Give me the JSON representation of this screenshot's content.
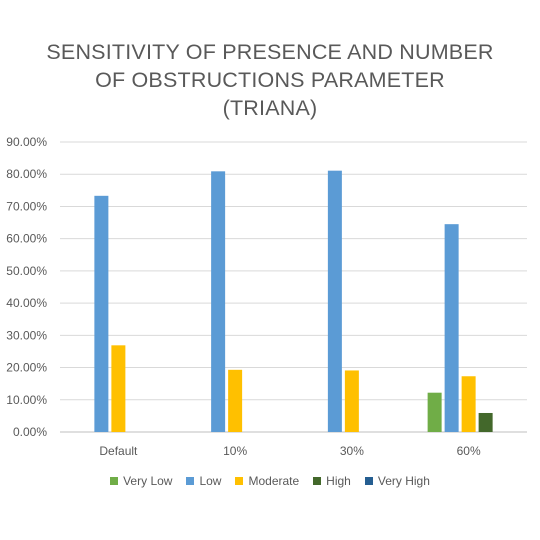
{
  "chart_data": {
    "type": "bar",
    "title": "SENSITIVITY OF PRESENCE AND NUMBER\nOF OBSTRUCTIONS PARAMETER\n(TRIANA)",
    "categories": [
      "Default",
      "10%",
      "30%",
      "60%"
    ],
    "series": [
      {
        "name": "Very Low",
        "color": "#70ad47",
        "values": [
          0,
          0,
          0,
          12.2
        ]
      },
      {
        "name": "Low",
        "color": "#5b9bd5",
        "values": [
          73.3,
          80.9,
          81.1,
          64.5
        ]
      },
      {
        "name": "Moderate",
        "color": "#ffc000",
        "values": [
          26.9,
          19.3,
          19.1,
          17.3
        ]
      },
      {
        "name": "High",
        "color": "#43682b",
        "values": [
          0,
          0,
          0,
          5.9
        ]
      },
      {
        "name": "Very High",
        "color": "#255e91",
        "values": [
          0,
          0,
          0,
          0
        ]
      }
    ],
    "ylim": [
      0,
      90
    ],
    "yticks": [
      "0.00%",
      "10.00%",
      "20.00%",
      "30.00%",
      "40.00%",
      "50.00%",
      "60.00%",
      "70.00%",
      "80.00%",
      "90.00%"
    ],
    "grid": true,
    "legend": "bottom"
  }
}
